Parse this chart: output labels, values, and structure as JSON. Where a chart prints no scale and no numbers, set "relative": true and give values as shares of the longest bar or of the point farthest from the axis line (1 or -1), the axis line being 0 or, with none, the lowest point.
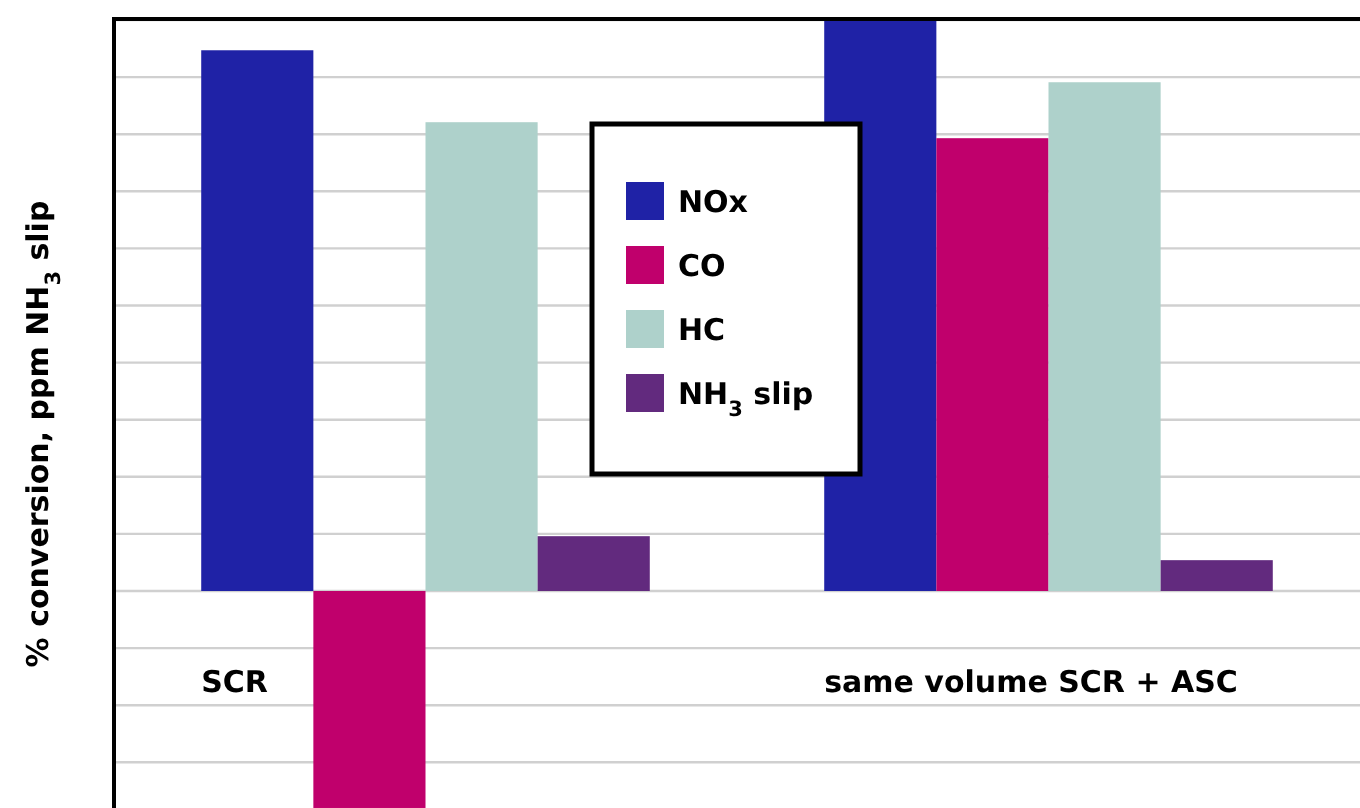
{
  "chart_data": {
    "type": "bar",
    "relative": true,
    "ylabel": "% conversion, ppm NH$_{3}$ slip",
    "categories": [
      "SCR",
      "same volume SCR + ASC"
    ],
    "series": [
      {
        "name": "NOx",
        "color": "#1f22a6",
        "values": [
          0.947,
          1
        ]
      },
      {
        "name": "CO",
        "color": "#c0006c",
        "values": [
          -0.38,
          0.793
        ]
      },
      {
        "name": "HC",
        "color": "#aed1cb",
        "values": [
          0.821,
          0.891
        ]
      },
      {
        "name": "NH$_{3}$ slip",
        "color": "#622a7e",
        "values": [
          0.096,
          0.054
        ]
      }
    ],
    "grid": true,
    "legend": "top"
  }
}
